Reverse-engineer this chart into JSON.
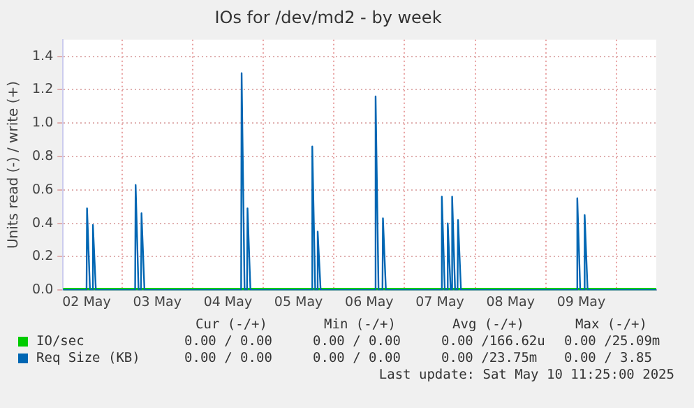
{
  "chart_data": {
    "type": "line",
    "title": "IOs for /dev/md2 - by week",
    "ylabel": "Units read (-) / write (+)",
    "xlim": [
      "2025-05-02T04:00",
      "2025-05-10T13:30"
    ],
    "xticks": [
      {
        "value": "2025-05-02T12:00",
        "label": "02 May"
      },
      {
        "value": "2025-05-03T00:00",
        "label": null
      },
      {
        "value": "2025-05-03T12:00",
        "label": "03 May"
      },
      {
        "value": "2025-05-04T00:00",
        "label": null
      },
      {
        "value": "2025-05-04T12:00",
        "label": "04 May"
      },
      {
        "value": "2025-05-05T00:00",
        "label": null
      },
      {
        "value": "2025-05-05T12:00",
        "label": "05 May"
      },
      {
        "value": "2025-05-06T00:00",
        "label": null
      },
      {
        "value": "2025-05-06T12:00",
        "label": "06 May"
      },
      {
        "value": "2025-05-07T00:00",
        "label": null
      },
      {
        "value": "2025-05-07T12:00",
        "label": "07 May"
      },
      {
        "value": "2025-05-08T00:00",
        "label": null
      },
      {
        "value": "2025-05-08T12:00",
        "label": "08 May"
      },
      {
        "value": "2025-05-09T00:00",
        "label": null
      },
      {
        "value": "2025-05-09T12:00",
        "label": "09 May"
      },
      {
        "value": "2025-05-10T00:00",
        "label": null
      }
    ],
    "ylim": [
      0,
      1.5
    ],
    "yticks": [
      {
        "value": 0,
        "label": "0.0"
      },
      {
        "value": 0.2,
        "label": "0.2"
      },
      {
        "value": 0.4,
        "label": "0.4"
      },
      {
        "value": 0.6,
        "label": "0.6"
      },
      {
        "value": 0.8,
        "label": "0.8"
      },
      {
        "value": 1.0,
        "label": "1.0"
      },
      {
        "value": 1.2,
        "label": "1.2"
      },
      {
        "value": 1.4,
        "label": "1.4"
      }
    ],
    "grid": true,
    "legend": "bottom",
    "marker": "none",
    "line_style": "solid",
    "series": [
      {
        "name": "IO/sec",
        "color": "#00cc00",
        "x": [
          "2025-05-02T04:00",
          "2025-05-10T13:30"
        ],
        "values": [
          0,
          0
        ]
      },
      {
        "name": "Req Size (KB)",
        "color": "#0066b3",
        "x": [
          "2025-05-02T04:00",
          "2025-05-02T12:00",
          "2025-05-02T12:10",
          "2025-05-02T13:10",
          "2025-05-02T14:00",
          "2025-05-02T14:10",
          "2025-05-02T15:10",
          "2025-05-03T04:30",
          "2025-05-03T04:40",
          "2025-05-03T05:40",
          "2025-05-03T06:30",
          "2025-05-03T06:40",
          "2025-05-03T07:40",
          "2025-05-04T16:30",
          "2025-05-04T16:40",
          "2025-05-04T17:40",
          "2025-05-04T18:30",
          "2025-05-04T18:40",
          "2025-05-04T19:40",
          "2025-05-05T16:30",
          "2025-05-05T16:40",
          "2025-05-05T17:40",
          "2025-05-05T18:20",
          "2025-05-05T18:30",
          "2025-05-05T19:30",
          "2025-05-06T14:00",
          "2025-05-06T14:10",
          "2025-05-06T15:10",
          "2025-05-06T16:30",
          "2025-05-06T16:40",
          "2025-05-06T17:40",
          "2025-05-07T12:30",
          "2025-05-07T12:40",
          "2025-05-07T13:40",
          "2025-05-07T14:30",
          "2025-05-07T14:40",
          "2025-05-07T15:40",
          "2025-05-07T16:00",
          "2025-05-07T16:10",
          "2025-05-07T17:10",
          "2025-05-07T18:00",
          "2025-05-07T18:10",
          "2025-05-07T19:10",
          "2025-05-09T10:30",
          "2025-05-09T10:40",
          "2025-05-09T11:40",
          "2025-05-09T13:00",
          "2025-05-09T13:10",
          "2025-05-09T14:10",
          "2025-05-10T13:30"
        ],
        "values": [
          0,
          0,
          0.49,
          0,
          0,
          0.39,
          0,
          0,
          0.63,
          0,
          0,
          0.46,
          0,
          0,
          1.3,
          0,
          0,
          0.49,
          0,
          0,
          0.86,
          0,
          0,
          0.35,
          0,
          0,
          1.16,
          0,
          0,
          0.43,
          0,
          0,
          0.56,
          0,
          0,
          0.4,
          0,
          0,
          0.56,
          0,
          0,
          0.42,
          0,
          0,
          0.55,
          0,
          0,
          0.45,
          0,
          0
        ]
      }
    ],
    "annotations": [
      "Cur (-/+)",
      "Min (-/+)",
      "Avg (-/+)",
      "Max (-/+)",
      "0.00 / 0.00",
      "0.00 / 0.00",
      "0.00 /166.62u",
      "0.00 /25.09m",
      "0.00 / 0.00",
      "0.00 / 0.00",
      "0.00 /23.75m",
      "0.00 / 3.85",
      "Last update: Sat May 10 11:25:00 2025"
    ]
  }
}
